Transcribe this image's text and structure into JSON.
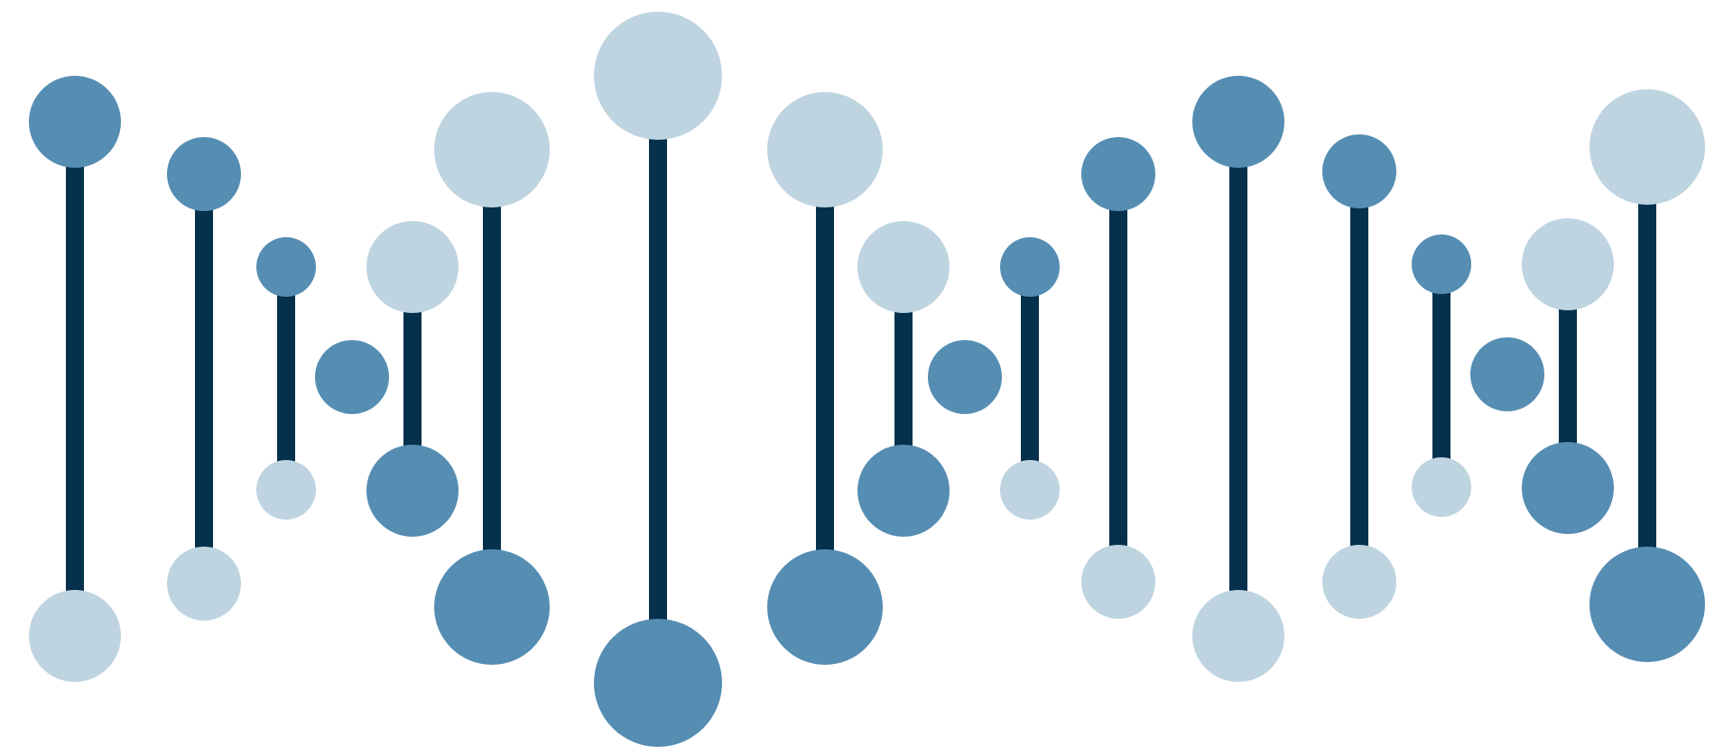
{
  "graphic": {
    "subject": "dna-helix-illustration",
    "colors": {
      "background": "#ffffff",
      "rung": "#05314c",
      "node_dark": "#558db3",
      "node_light": "#bed4e0"
    },
    "rungs": [
      {
        "id": "rung-1",
        "top_shade": "dark",
        "bottom_shade": "light"
      },
      {
        "id": "rung-2",
        "top_shade": "dark",
        "bottom_shade": "light"
      },
      {
        "id": "rung-3",
        "top_shade": "dark",
        "bottom_shade": "light"
      },
      {
        "id": "rung-4",
        "top_shade": "light",
        "bottom_shade": "dark"
      },
      {
        "id": "rung-5",
        "top_shade": "light",
        "bottom_shade": "dark"
      },
      {
        "id": "rung-6",
        "top_shade": "light",
        "bottom_shade": "dark"
      },
      {
        "id": "rung-7",
        "top_shade": "light",
        "bottom_shade": "dark"
      },
      {
        "id": "rung-8",
        "top_shade": "light",
        "bottom_shade": "dark"
      },
      {
        "id": "rung-9",
        "top_shade": "dark",
        "bottom_shade": "light"
      },
      {
        "id": "rung-10",
        "top_shade": "dark",
        "bottom_shade": "light"
      },
      {
        "id": "rung-11",
        "top_shade": "dark",
        "bottom_shade": "light"
      },
      {
        "id": "rung-12",
        "top_shade": "dark",
        "bottom_shade": "light"
      },
      {
        "id": "rung-13",
        "top_shade": "dark",
        "bottom_shade": "light"
      },
      {
        "id": "rung-14",
        "top_shade": "light",
        "bottom_shade": "dark"
      },
      {
        "id": "rung-15",
        "top_shade": "light",
        "bottom_shade": "dark"
      }
    ],
    "single_nodes": [
      {
        "id": "single-node-1",
        "shade": "dark"
      },
      {
        "id": "single-node-2",
        "shade": "dark"
      },
      {
        "id": "single-node-3",
        "shade": "dark"
      }
    ]
  }
}
